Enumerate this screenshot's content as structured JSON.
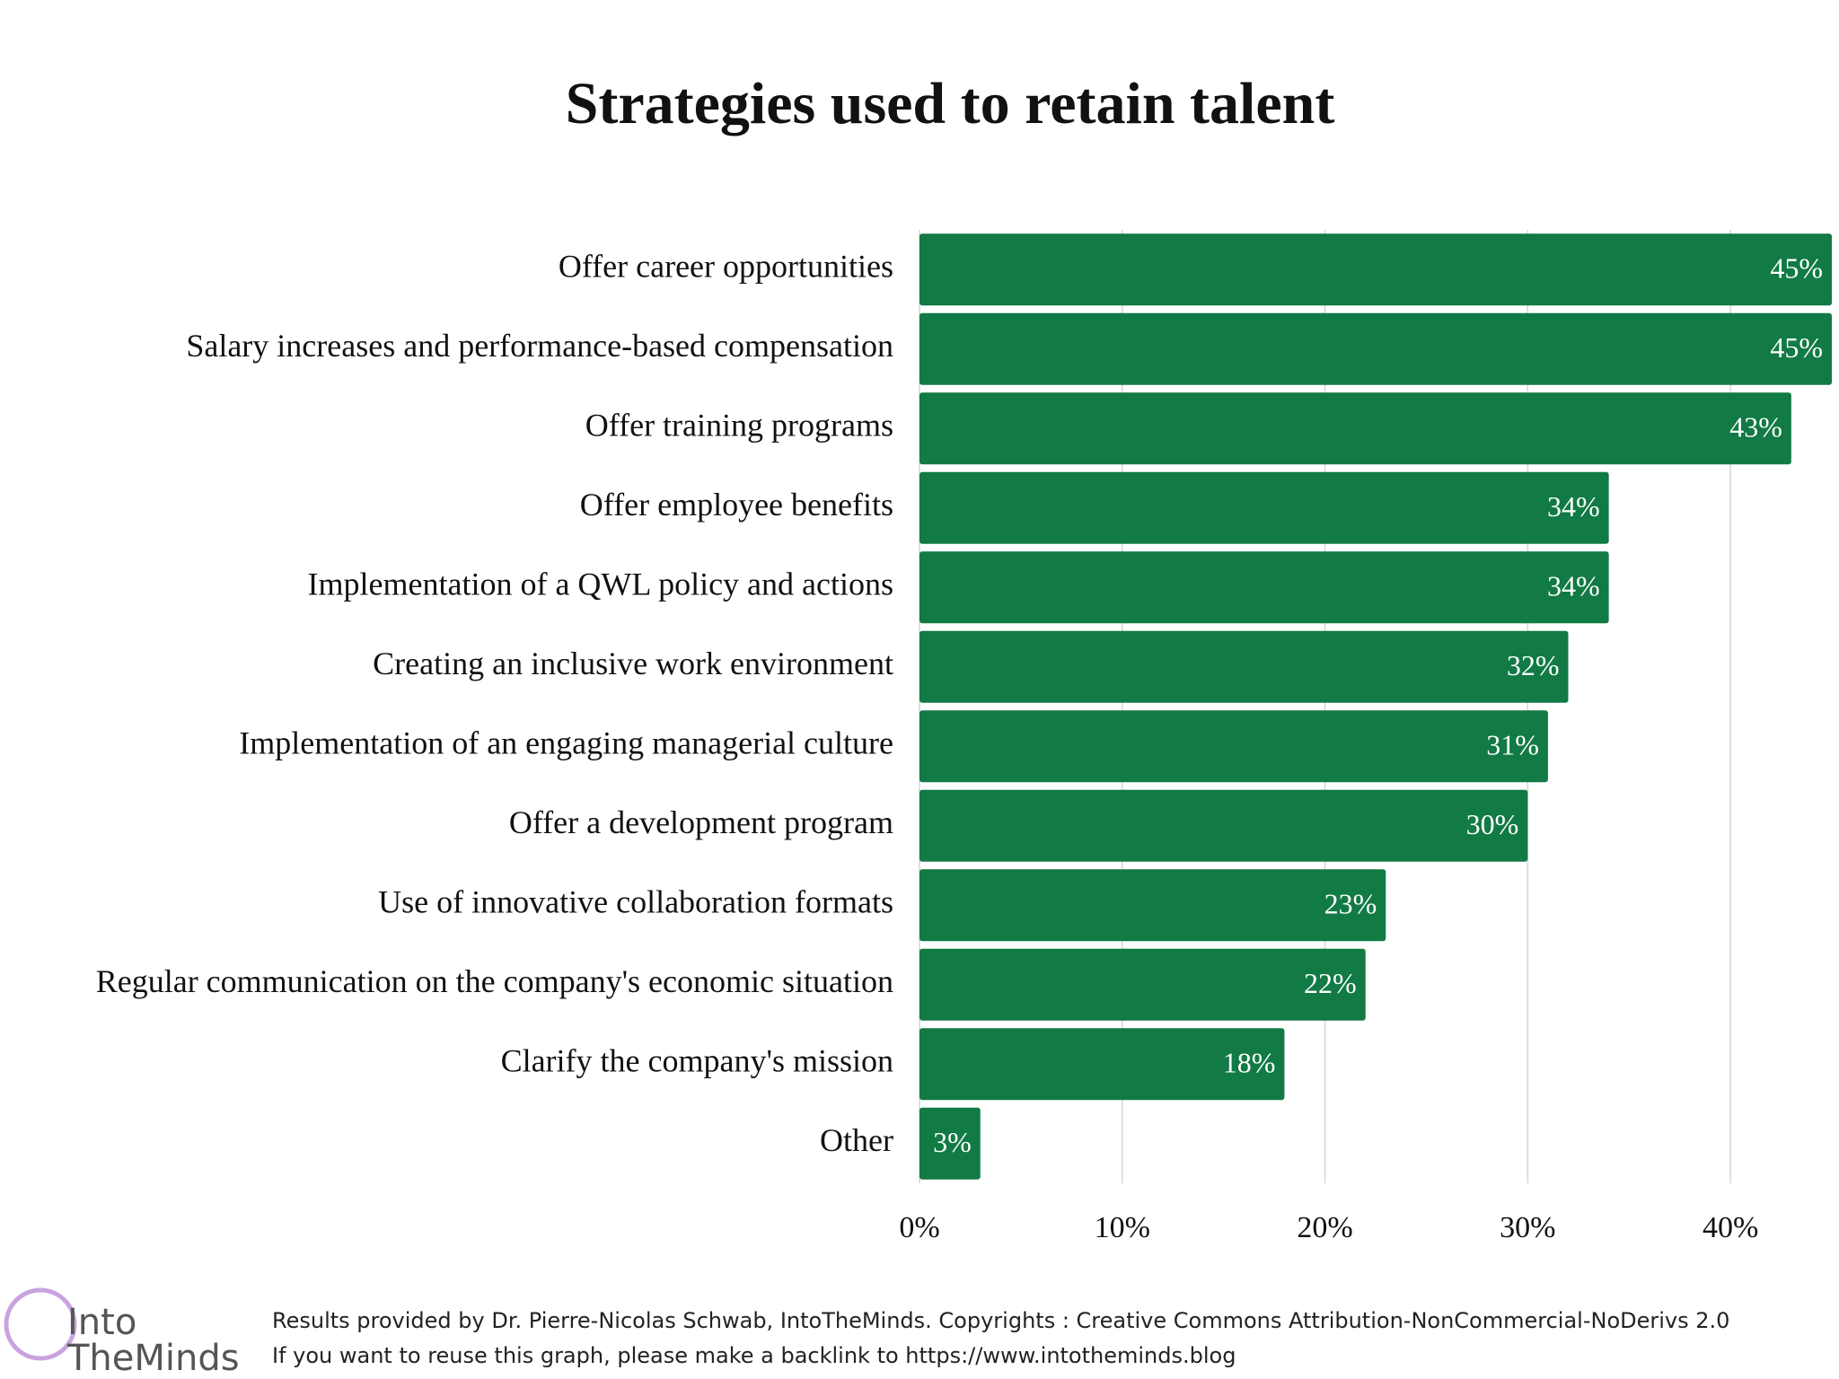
{
  "chart_data": {
    "type": "barh",
    "title": "Strategies used to retain talent",
    "categories": [
      "Offer career opportunities",
      "Salary increases and performance-based compensation",
      "Offer training programs",
      "Offer employee benefits",
      "Implementation of a QWL policy and actions",
      "Creating an inclusive work environment",
      "Implementation of an engaging managerial culture",
      "Offer a development program",
      "Use of innovative collaboration formats",
      "Regular communication on the company's economic situation",
      "Clarify the company's mission",
      "Other"
    ],
    "values": [
      45,
      45,
      43,
      34,
      34,
      32,
      31,
      30,
      23,
      22,
      18,
      3
    ],
    "value_labels": [
      "45%",
      "45%",
      "43%",
      "34%",
      "34%",
      "32%",
      "31%",
      "30%",
      "23%",
      "22%",
      "18%",
      "3%"
    ],
    "color": "#117a45",
    "xlim": [
      0,
      45
    ],
    "xticks": [
      {
        "value": 0,
        "label": "0%"
      },
      {
        "value": 10,
        "label": "10%"
      },
      {
        "value": 20,
        "label": "20%"
      },
      {
        "value": 30,
        "label": "30%"
      },
      {
        "value": 40,
        "label": "40%"
      }
    ],
    "grid": true
  },
  "logo": [
    "Into",
    "TheMinds"
  ],
  "footer": [
    "Results provided by Dr. Pierre-Nicolas Schwab, IntoTheMinds. Copyrights : Creative Commons Attribution-NonCommercial-NoDerivs 2.0",
    "If you want to reuse this graph, please make a backlink to https://www.intotheminds.blog"
  ]
}
